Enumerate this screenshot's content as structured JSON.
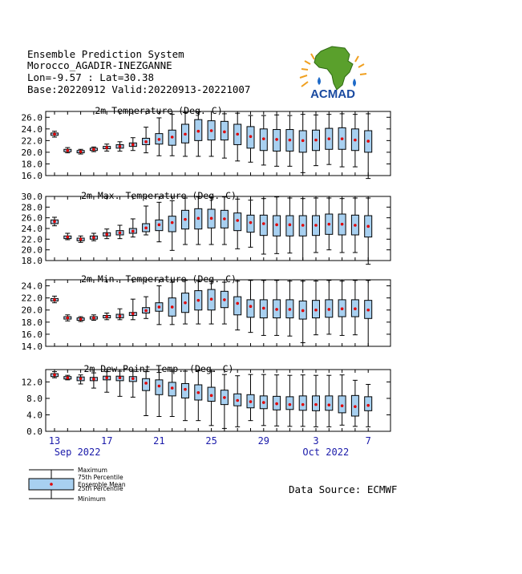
{
  "header": {
    "line1": "Ensemble Prediction System",
    "line2": "Morocco_AGADIR-INEZGANNE",
    "line3": "Lon=-9.57 : Lat=30.38",
    "line4": "Base:20220912 Valid:20220913-20221007"
  },
  "logo": {
    "text": "ACMAD"
  },
  "data_source": "Data Source: ECMWF",
  "x_axis": {
    "ticks": [
      {
        "day": 0,
        "label": "13"
      },
      {
        "day": 4,
        "label": "17"
      },
      {
        "day": 8,
        "label": "21"
      },
      {
        "day": 12,
        "label": "25"
      },
      {
        "day": 16,
        "label": "29"
      },
      {
        "day": 20,
        "label": "3"
      },
      {
        "day": 24,
        "label": "7"
      }
    ],
    "month_labels": [
      {
        "day": 2,
        "label": "Sep 2022"
      },
      {
        "day": 21,
        "label": "Oct 2022"
      }
    ]
  },
  "legend": {
    "maximum": "Maximum",
    "p75": "75th Percentile",
    "mean": "Ensemble Mean",
    "p25": "25th Percentile",
    "minimum": "Minimum"
  },
  "colors": {
    "box_fill": "#a8d0f0",
    "mean_marker": "#e00000",
    "axis_label": "#1a1aaa"
  },
  "chart_data": [
    {
      "type": "boxplot",
      "title": "2m Temperature (Deg. C)",
      "ylim": [
        16.0,
        27.0
      ],
      "yticks": [
        16.0,
        18.0,
        20.0,
        22.0,
        24.0,
        26.0
      ],
      "min": [
        22.6,
        19.9,
        19.7,
        20.1,
        20.2,
        20.2,
        20.3,
        19.9,
        19.4,
        19.4,
        19.3,
        19.3,
        19.3,
        19.0,
        18.5,
        18.3,
        17.8,
        17.6,
        17.6,
        16.5,
        17.7,
        17.9,
        17.5,
        17.5,
        15.5
      ],
      "p25": [
        22.9,
        20.1,
        19.9,
        20.3,
        20.6,
        20.7,
        21.0,
        21.3,
        21.4,
        21.2,
        21.6,
        22.0,
        22.1,
        22.1,
        21.3,
        20.7,
        20.3,
        20.2,
        20.2,
        20.0,
        20.3,
        20.5,
        20.5,
        20.3,
        20.0
      ],
      "mean": [
        23.1,
        20.3,
        20.1,
        20.5,
        20.8,
        21.0,
        21.3,
        21.8,
        22.2,
        22.6,
        23.1,
        23.6,
        23.7,
        23.5,
        23.1,
        22.7,
        22.3,
        22.2,
        22.1,
        22.0,
        22.1,
        22.3,
        22.3,
        22.1,
        21.9
      ],
      "p75": [
        23.3,
        20.5,
        20.3,
        20.7,
        21.0,
        21.3,
        21.6,
        22.4,
        23.2,
        23.8,
        24.8,
        25.6,
        25.4,
        25.3,
        24.8,
        24.4,
        24.0,
        23.9,
        23.9,
        23.7,
        23.8,
        24.1,
        24.2,
        24.0,
        23.7
      ],
      "max": [
        23.6,
        20.8,
        20.5,
        20.9,
        21.4,
        21.8,
        22.5,
        24.3,
        25.9,
        26.5,
        26.8,
        26.9,
        27.0,
        26.6,
        26.7,
        26.3,
        26.3,
        26.4,
        26.3,
        26.5,
        26.4,
        26.5,
        26.6,
        26.5,
        26.6
      ]
    },
    {
      "type": "boxplot",
      "title": "2m Max. Temperature (Deg. C)",
      "ylim": [
        18.0,
        30.0
      ],
      "yticks": [
        18.0,
        20.0,
        22.0,
        24.0,
        26.0,
        28.0,
        30.0
      ],
      "min": [
        24.5,
        21.9,
        21.4,
        21.7,
        22.1,
        22.1,
        22.4,
        22.8,
        21.5,
        19.9,
        21.0,
        21.0,
        21.0,
        21.0,
        20.2,
        20.5,
        19.2,
        19.3,
        19.4,
        18.0,
        19.5,
        20.0,
        19.5,
        19.5,
        17.3
      ],
      "p25": [
        24.9,
        22.1,
        21.7,
        22.0,
        22.6,
        22.8,
        23.1,
        23.4,
        23.6,
        23.4,
        23.9,
        23.9,
        24.1,
        24.1,
        23.6,
        23.3,
        22.7,
        22.6,
        22.6,
        22.6,
        22.7,
        22.9,
        22.8,
        22.8,
        22.4
      ],
      "mean": [
        25.3,
        22.4,
        22.0,
        22.3,
        22.9,
        23.2,
        23.5,
        24.1,
        24.7,
        25.1,
        25.7,
        25.9,
        25.9,
        25.8,
        25.5,
        25.1,
        24.9,
        24.7,
        24.7,
        24.6,
        24.6,
        24.8,
        24.8,
        24.6,
        24.4
      ],
      "p75": [
        25.6,
        22.6,
        22.2,
        22.6,
        23.2,
        23.6,
        24.0,
        24.9,
        25.6,
        26.3,
        27.4,
        27.7,
        27.6,
        27.4,
        26.9,
        26.5,
        26.5,
        26.4,
        26.4,
        26.4,
        26.4,
        26.7,
        26.7,
        26.5,
        26.4
      ],
      "max": [
        26.1,
        23.1,
        22.6,
        23.1,
        23.9,
        24.6,
        25.8,
        28.2,
        28.9,
        29.2,
        29.7,
        29.9,
        29.8,
        29.9,
        29.5,
        29.3,
        29.6,
        29.9,
        29.7,
        29.6,
        29.7,
        29.7,
        29.6,
        29.7,
        29.7
      ]
    },
    {
      "type": "boxplot",
      "title": "2m Min. Temperature (Deg. C)",
      "ylim": [
        14.0,
        25.0
      ],
      "yticks": [
        14.0,
        16.0,
        18.0,
        20.0,
        22.0,
        24.0
      ],
      "min": [
        21.2,
        18.2,
        18.1,
        18.3,
        18.4,
        18.4,
        18.4,
        18.6,
        17.6,
        17.6,
        17.7,
        17.7,
        17.7,
        17.7,
        16.7,
        16.3,
        15.8,
        15.8,
        15.7,
        14.6,
        15.9,
        16.0,
        15.8,
        15.9,
        14.0
      ],
      "p25": [
        21.5,
        18.5,
        18.3,
        18.5,
        18.7,
        18.7,
        19.1,
        19.5,
        19.8,
        19.0,
        19.6,
        20.0,
        20.0,
        20.4,
        19.2,
        18.8,
        18.7,
        18.7,
        18.7,
        18.5,
        18.7,
        18.8,
        18.9,
        18.9,
        18.6
      ],
      "mean": [
        21.7,
        18.7,
        18.5,
        18.7,
        18.9,
        19.0,
        19.4,
        19.9,
        20.5,
        20.5,
        21.2,
        21.6,
        21.8,
        21.7,
        21.1,
        20.6,
        20.3,
        20.1,
        20.1,
        19.9,
        20.0,
        20.1,
        20.2,
        20.2,
        20.0
      ],
      "p75": [
        21.9,
        18.9,
        18.7,
        18.9,
        19.1,
        19.3,
        19.6,
        20.4,
        21.2,
        22.0,
        22.8,
        23.2,
        23.4,
        23.1,
        22.2,
        21.7,
        21.7,
        21.7,
        21.7,
        21.5,
        21.6,
        21.7,
        21.7,
        21.7,
        21.6
      ],
      "max": [
        22.3,
        19.2,
        18.9,
        19.2,
        19.5,
        20.2,
        21.8,
        22.2,
        24.0,
        24.6,
        24.9,
        24.8,
        24.7,
        24.6,
        24.8,
        24.9,
        24.9,
        24.9,
        24.8,
        24.8,
        24.8,
        24.9,
        24.8,
        24.9,
        24.9
      ]
    },
    {
      "type": "boxplot",
      "title": "2m Dew Point Temp. (Deg. C)",
      "ylim": [
        0.0,
        15.0
      ],
      "yticks": [
        0.0,
        4.0,
        8.0,
        12.0
      ],
      "min": [
        13.0,
        12.5,
        11.5,
        10.5,
        9.5,
        8.5,
        8.3,
        3.8,
        3.6,
        3.6,
        2.6,
        2.6,
        1.4,
        0.7,
        1.1,
        2.6,
        1.4,
        1.3,
        1.2,
        1.2,
        1.1,
        1.1,
        1.5,
        1.2,
        1.1
      ],
      "p25": [
        13.3,
        12.7,
        12.3,
        12.3,
        12.5,
        12.3,
        12.1,
        9.9,
        8.9,
        8.6,
        8.1,
        7.6,
        7.3,
        6.5,
        6.2,
        5.7,
        5.5,
        5.2,
        5.3,
        5.1,
        5.0,
        5.1,
        4.5,
        3.7,
        5.0
      ],
      "mean": [
        13.7,
        13.0,
        12.8,
        12.7,
        13.0,
        13.0,
        12.8,
        11.7,
        11.0,
        10.5,
        10.2,
        9.4,
        8.7,
        8.2,
        7.5,
        7.2,
        7.0,
        6.7,
        6.5,
        6.5,
        6.5,
        6.4,
        6.2,
        6.0,
        6.3
      ],
      "p75": [
        14.0,
        13.3,
        13.2,
        13.1,
        13.4,
        13.4,
        13.3,
        12.8,
        12.5,
        11.9,
        11.6,
        11.3,
        10.7,
        10.0,
        9.1,
        8.9,
        8.6,
        8.5,
        8.4,
        8.6,
        8.6,
        8.6,
        8.6,
        8.7,
        8.4
      ],
      "max": [
        14.5,
        13.6,
        13.7,
        14.2,
        14.5,
        14.6,
        14.6,
        14.5,
        14.3,
        14.6,
        14.6,
        14.7,
        14.6,
        13.8,
        13.5,
        13.8,
        13.8,
        13.7,
        13.6,
        13.7,
        13.6,
        13.6,
        13.7,
        12.4,
        11.4
      ]
    }
  ]
}
